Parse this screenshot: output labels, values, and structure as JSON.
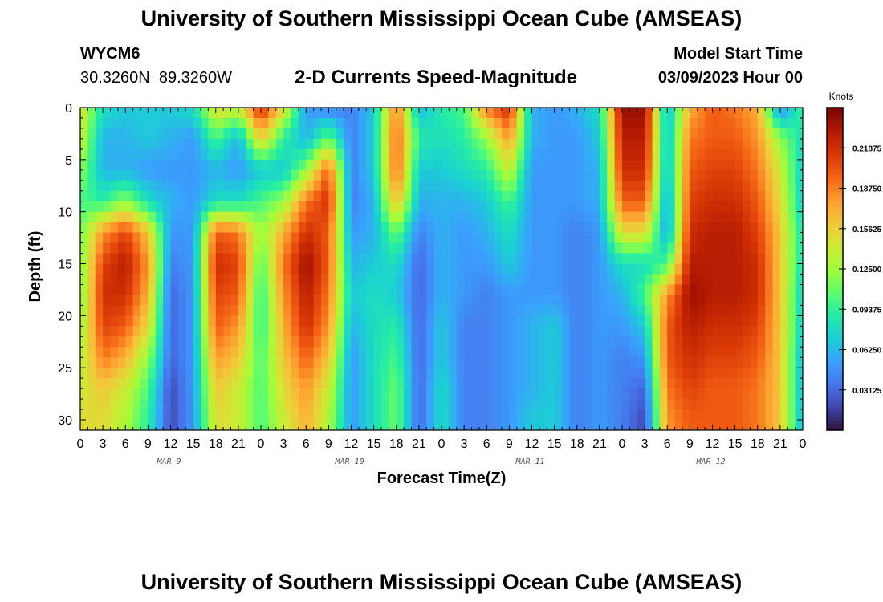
{
  "page": {
    "title": "University of Southern Mississippi Ocean Cube (AMSEAS)",
    "footer_title": "University of Southern Mississippi Ocean Cube (AMSEAS)",
    "station_id": "WYCM6",
    "station_coords": "30.3260N  89.3260W",
    "model_start_label": "Model Start Time",
    "model_start_value": "03/09/2023 Hour 00"
  },
  "chart_data": {
    "type": "heatmap",
    "title": "2-D Currents Speed-Magnitude",
    "xlabel": "Forecast Time(Z)",
    "ylabel": "Depth (ft)",
    "x_ticks": [
      "0",
      "3",
      "6",
      "9",
      "12",
      "15",
      "18",
      "21",
      "0",
      "3",
      "6",
      "9",
      "12",
      "15",
      "18",
      "21",
      "0",
      "3",
      "6",
      "9",
      "12",
      "15",
      "18",
      "21",
      "0",
      "3",
      "6",
      "9",
      "12",
      "15",
      "18",
      "21",
      "0"
    ],
    "day_labels": [
      "MAR 9",
      "MAR 10",
      "MAR 11",
      "MAR 12"
    ],
    "y_ticks": [
      "0",
      "5",
      "10",
      "15",
      "20",
      "25",
      "30"
    ],
    "x_range_hours": [
      0,
      96
    ],
    "y_range_ft": [
      0,
      31
    ],
    "colorbar": {
      "unit": "Knots",
      "range": [
        0.0,
        0.25
      ],
      "tick_labels": [
        "0.21875",
        "0.18750",
        "0.15625",
        "0.12500",
        "0.09375",
        "0.06250",
        "0.03125"
      ],
      "tick_values": [
        0.21875,
        0.1875,
        0.15625,
        0.125,
        0.09375,
        0.0625,
        0.03125
      ],
      "colors": [
        "#30123b",
        "#4145ab",
        "#4675ed",
        "#39a2fc",
        "#1bcfd4",
        "#24eca6",
        "#61fc6c",
        "#a4fc3b",
        "#d1e834",
        "#f3c63a",
        "#fe9b2d",
        "#f36315",
        "#d93806",
        "#b11901",
        "#7a0402"
      ]
    },
    "depth_levels_ft": [
      0,
      3,
      6,
      9,
      12,
      15,
      18,
      21,
      24,
      27,
      30
    ],
    "time_hours": [
      0,
      3,
      6,
      9,
      12,
      15,
      18,
      21,
      24,
      27,
      30,
      33,
      36,
      39,
      42,
      45,
      48,
      51,
      54,
      57,
      60,
      63,
      66,
      69,
      72,
      75,
      78,
      81,
      84,
      87,
      90,
      93,
      96
    ],
    "speed_knots": [
      [
        0.15,
        0.08,
        0.07,
        0.07,
        0.07,
        0.08,
        0.15,
        0.14,
        0.22,
        0.15,
        0.05,
        0.04,
        0.04,
        0.07,
        0.19,
        0.06,
        0.09,
        0.1,
        0.19,
        0.22,
        0.06,
        0.05,
        0.06,
        0.08,
        0.24,
        0.24,
        0.06,
        0.17,
        0.2,
        0.19,
        0.17,
        0.04,
        0.1
      ],
      [
        0.14,
        0.06,
        0.06,
        0.07,
        0.06,
        0.05,
        0.1,
        0.06,
        0.16,
        0.09,
        0.06,
        0.11,
        0.04,
        0.07,
        0.2,
        0.09,
        0.08,
        0.09,
        0.12,
        0.18,
        0.06,
        0.05,
        0.05,
        0.07,
        0.23,
        0.23,
        0.06,
        0.19,
        0.2,
        0.2,
        0.18,
        0.12,
        0.08
      ],
      [
        0.12,
        0.06,
        0.06,
        0.05,
        0.05,
        0.05,
        0.06,
        0.05,
        0.07,
        0.07,
        0.12,
        0.2,
        0.04,
        0.07,
        0.2,
        0.07,
        0.07,
        0.08,
        0.09,
        0.14,
        0.05,
        0.05,
        0.05,
        0.06,
        0.22,
        0.22,
        0.06,
        0.2,
        0.21,
        0.21,
        0.19,
        0.14,
        0.07
      ],
      [
        0.1,
        0.09,
        0.12,
        0.08,
        0.06,
        0.05,
        0.08,
        0.08,
        0.1,
        0.12,
        0.19,
        0.22,
        0.04,
        0.06,
        0.17,
        0.06,
        0.06,
        0.06,
        0.07,
        0.1,
        0.05,
        0.05,
        0.05,
        0.06,
        0.2,
        0.2,
        0.05,
        0.21,
        0.22,
        0.22,
        0.2,
        0.15,
        0.07
      ],
      [
        0.11,
        0.18,
        0.21,
        0.16,
        0.05,
        0.05,
        0.2,
        0.19,
        0.12,
        0.17,
        0.22,
        0.2,
        0.05,
        0.06,
        0.11,
        0.04,
        0.06,
        0.05,
        0.06,
        0.08,
        0.05,
        0.05,
        0.04,
        0.05,
        0.15,
        0.15,
        0.05,
        0.22,
        0.23,
        0.23,
        0.21,
        0.16,
        0.08
      ],
      [
        0.11,
        0.21,
        0.23,
        0.18,
        0.04,
        0.05,
        0.22,
        0.21,
        0.1,
        0.19,
        0.24,
        0.2,
        0.06,
        0.07,
        0.08,
        0.03,
        0.06,
        0.05,
        0.05,
        0.07,
        0.05,
        0.05,
        0.04,
        0.05,
        0.08,
        0.08,
        0.1,
        0.23,
        0.23,
        0.23,
        0.22,
        0.16,
        0.08
      ],
      [
        0.11,
        0.22,
        0.22,
        0.17,
        0.03,
        0.05,
        0.21,
        0.2,
        0.09,
        0.18,
        0.23,
        0.19,
        0.07,
        0.08,
        0.07,
        0.03,
        0.06,
        0.05,
        0.04,
        0.05,
        0.05,
        0.05,
        0.04,
        0.05,
        0.06,
        0.1,
        0.18,
        0.24,
        0.23,
        0.23,
        0.22,
        0.16,
        0.07
      ],
      [
        0.12,
        0.21,
        0.2,
        0.15,
        0.03,
        0.05,
        0.2,
        0.18,
        0.09,
        0.17,
        0.22,
        0.18,
        0.06,
        0.08,
        0.09,
        0.03,
        0.07,
        0.04,
        0.04,
        0.05,
        0.06,
        0.07,
        0.04,
        0.05,
        0.05,
        0.07,
        0.2,
        0.23,
        0.22,
        0.22,
        0.21,
        0.16,
        0.07
      ],
      [
        0.13,
        0.19,
        0.17,
        0.12,
        0.03,
        0.05,
        0.18,
        0.16,
        0.1,
        0.16,
        0.2,
        0.16,
        0.05,
        0.08,
        0.1,
        0.03,
        0.07,
        0.04,
        0.04,
        0.05,
        0.06,
        0.07,
        0.04,
        0.05,
        0.04,
        0.05,
        0.2,
        0.22,
        0.21,
        0.21,
        0.2,
        0.16,
        0.06
      ],
      [
        0.14,
        0.16,
        0.14,
        0.1,
        0.02,
        0.05,
        0.16,
        0.14,
        0.1,
        0.15,
        0.18,
        0.14,
        0.05,
        0.08,
        0.11,
        0.03,
        0.08,
        0.04,
        0.04,
        0.05,
        0.06,
        0.07,
        0.04,
        0.05,
        0.04,
        0.03,
        0.19,
        0.21,
        0.2,
        0.2,
        0.19,
        0.16,
        0.06
      ],
      [
        0.15,
        0.15,
        0.13,
        0.09,
        0.02,
        0.05,
        0.15,
        0.14,
        0.1,
        0.14,
        0.17,
        0.13,
        0.05,
        0.08,
        0.11,
        0.03,
        0.08,
        0.04,
        0.04,
        0.05,
        0.07,
        0.07,
        0.04,
        0.05,
        0.04,
        0.02,
        0.18,
        0.2,
        0.2,
        0.2,
        0.19,
        0.16,
        0.06
      ]
    ]
  }
}
